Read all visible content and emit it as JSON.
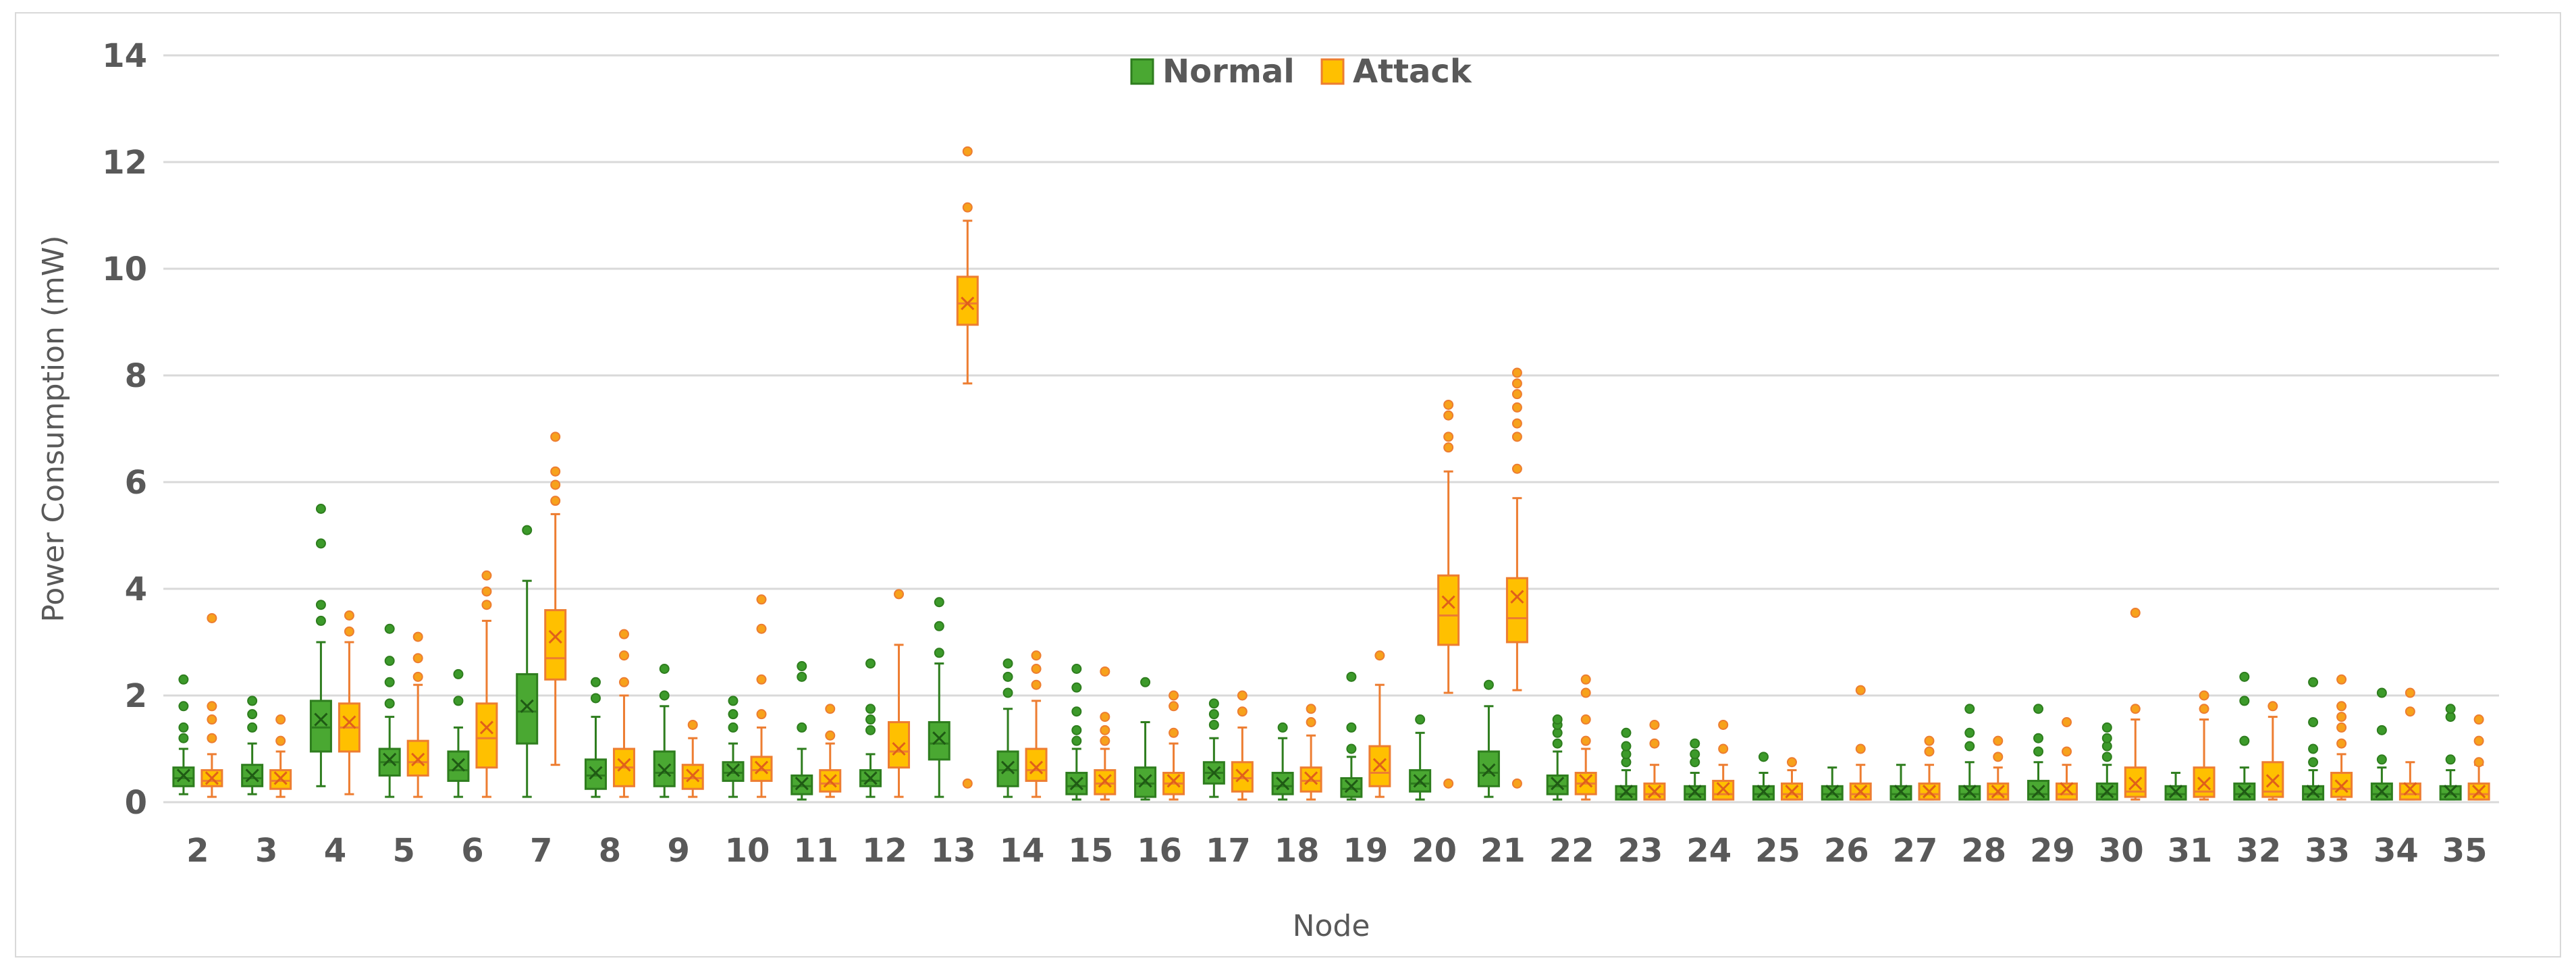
{
  "chart_data": {
    "type": "box",
    "title": "",
    "xlabel": "Node",
    "ylabel": "Power Consumption (mW)",
    "ylim": [
      0,
      14
    ],
    "yticks": [
      0,
      2,
      4,
      6,
      8,
      10,
      12,
      14
    ],
    "grid": true,
    "legend_position": "top-center",
    "categories": [
      "2",
      "3",
      "4",
      "5",
      "6",
      "7",
      "8",
      "9",
      "10",
      "11",
      "12",
      "13",
      "14",
      "15",
      "16",
      "17",
      "18",
      "19",
      "20",
      "21",
      "22",
      "23",
      "24",
      "25",
      "26",
      "27",
      "28",
      "29",
      "30",
      "31",
      "32",
      "33",
      "34",
      "35"
    ],
    "series": [
      {
        "name": "Normal",
        "color": "#4aa832",
        "edge": "#2e7d1e",
        "boxes": [
          {
            "min": 0.15,
            "q1": 0.3,
            "median": 0.45,
            "q3": 0.65,
            "max": 1.0,
            "mean": 0.5,
            "outliers": [
              1.2,
              1.4,
              1.8,
              2.3
            ]
          },
          {
            "min": 0.15,
            "q1": 0.3,
            "median": 0.45,
            "q3": 0.7,
            "max": 1.1,
            "mean": 0.5,
            "outliers": [
              1.4,
              1.65,
              1.9
            ]
          },
          {
            "min": 0.3,
            "q1": 0.95,
            "median": 1.4,
            "q3": 1.9,
            "max": 3.0,
            "mean": 1.55,
            "outliers": [
              3.4,
              3.7,
              4.85,
              5.5
            ]
          },
          {
            "min": 0.1,
            "q1": 0.5,
            "median": 0.75,
            "q3": 1.0,
            "max": 1.6,
            "mean": 0.8,
            "outliers": [
              1.85,
              2.25,
              2.65,
              3.25
            ]
          },
          {
            "min": 0.1,
            "q1": 0.4,
            "median": 0.6,
            "q3": 0.95,
            "max": 1.4,
            "mean": 0.7,
            "outliers": [
              1.9,
              2.4
            ]
          },
          {
            "min": 0.1,
            "q1": 1.1,
            "median": 1.7,
            "q3": 2.4,
            "max": 4.15,
            "mean": 1.8,
            "outliers": [
              5.1
            ]
          },
          {
            "min": 0.1,
            "q1": 0.25,
            "median": 0.5,
            "q3": 0.8,
            "max": 1.6,
            "mean": 0.55,
            "outliers": [
              1.95,
              2.25
            ]
          },
          {
            "min": 0.1,
            "q1": 0.3,
            "median": 0.55,
            "q3": 0.95,
            "max": 1.8,
            "mean": 0.6,
            "outliers": [
              2.0,
              2.5
            ]
          },
          {
            "min": 0.1,
            "q1": 0.4,
            "median": 0.55,
            "q3": 0.75,
            "max": 1.1,
            "mean": 0.6,
            "outliers": [
              1.4,
              1.65,
              1.9
            ]
          },
          {
            "min": 0.05,
            "q1": 0.15,
            "median": 0.3,
            "q3": 0.5,
            "max": 1.0,
            "mean": 0.35,
            "outliers": [
              1.4,
              2.35,
              2.55
            ]
          },
          {
            "min": 0.1,
            "q1": 0.3,
            "median": 0.4,
            "q3": 0.6,
            "max": 0.9,
            "mean": 0.45,
            "outliers": [
              1.35,
              1.55,
              1.75,
              2.6
            ]
          },
          {
            "min": 0.1,
            "q1": 0.8,
            "median": 1.1,
            "q3": 1.5,
            "max": 2.6,
            "mean": 1.2,
            "outliers": [
              2.8,
              3.3,
              3.75
            ]
          },
          {
            "min": 0.1,
            "q1": 0.3,
            "median": 0.6,
            "q3": 0.95,
            "max": 1.75,
            "mean": 0.65,
            "outliers": [
              2.05,
              2.35,
              2.6
            ]
          },
          {
            "min": 0.05,
            "q1": 0.15,
            "median": 0.3,
            "q3": 0.55,
            "max": 1.0,
            "mean": 0.35,
            "outliers": [
              1.15,
              1.35,
              1.7,
              2.15,
              2.5
            ]
          },
          {
            "min": 0.05,
            "q1": 0.1,
            "median": 0.35,
            "q3": 0.65,
            "max": 1.5,
            "mean": 0.4,
            "outliers": [
              2.25
            ]
          },
          {
            "min": 0.1,
            "q1": 0.35,
            "median": 0.55,
            "q3": 0.75,
            "max": 1.2,
            "mean": 0.55,
            "outliers": [
              1.45,
              1.65,
              1.85
            ]
          },
          {
            "min": 0.05,
            "q1": 0.15,
            "median": 0.3,
            "q3": 0.55,
            "max": 1.2,
            "mean": 0.35,
            "outliers": [
              1.4
            ]
          },
          {
            "min": 0.05,
            "q1": 0.1,
            "median": 0.25,
            "q3": 0.45,
            "max": 0.85,
            "mean": 0.3,
            "outliers": [
              1.0,
              1.4,
              2.35
            ]
          },
          {
            "min": 0.05,
            "q1": 0.2,
            "median": 0.35,
            "q3": 0.6,
            "max": 1.3,
            "mean": 0.4,
            "outliers": [
              1.55
            ]
          },
          {
            "min": 0.1,
            "q1": 0.3,
            "median": 0.55,
            "q3": 0.95,
            "max": 1.8,
            "mean": 0.6,
            "outliers": [
              2.2
            ]
          },
          {
            "min": 0.05,
            "q1": 0.15,
            "median": 0.3,
            "q3": 0.5,
            "max": 0.95,
            "mean": 0.35,
            "outliers": [
              1.1,
              1.3,
              1.45,
              1.55
            ]
          },
          {
            "min": 0.05,
            "q1": 0.05,
            "median": 0.15,
            "q3": 0.3,
            "max": 0.6,
            "mean": 0.2,
            "outliers": [
              0.75,
              0.9,
              1.05,
              1.3
            ]
          },
          {
            "min": 0.05,
            "q1": 0.05,
            "median": 0.15,
            "q3": 0.3,
            "max": 0.55,
            "mean": 0.2,
            "outliers": [
              0.75,
              0.9,
              1.1
            ]
          },
          {
            "min": 0.05,
            "q1": 0.05,
            "median": 0.15,
            "q3": 0.3,
            "max": 0.55,
            "mean": 0.2,
            "outliers": [
              0.85
            ]
          },
          {
            "min": 0.05,
            "q1": 0.05,
            "median": 0.15,
            "q3": 0.3,
            "max": 0.65,
            "mean": 0.2,
            "outliers": []
          },
          {
            "min": 0.05,
            "q1": 0.05,
            "median": 0.15,
            "q3": 0.3,
            "max": 0.7,
            "mean": 0.2,
            "outliers": []
          },
          {
            "min": 0.05,
            "q1": 0.05,
            "median": 0.15,
            "q3": 0.3,
            "max": 0.75,
            "mean": 0.2,
            "outliers": [
              1.05,
              1.3,
              1.75
            ]
          },
          {
            "min": 0.05,
            "q1": 0.05,
            "median": 0.15,
            "q3": 0.4,
            "max": 0.75,
            "mean": 0.2,
            "outliers": [
              0.95,
              1.2,
              1.75
            ]
          },
          {
            "min": 0.05,
            "q1": 0.05,
            "median": 0.15,
            "q3": 0.35,
            "max": 0.7,
            "mean": 0.2,
            "outliers": [
              0.85,
              1.05,
              1.2,
              1.4
            ]
          },
          {
            "min": 0.05,
            "q1": 0.05,
            "median": 0.15,
            "q3": 0.3,
            "max": 0.55,
            "mean": 0.2,
            "outliers": []
          },
          {
            "min": 0.05,
            "q1": 0.05,
            "median": 0.15,
            "q3": 0.35,
            "max": 0.65,
            "mean": 0.2,
            "outliers": [
              1.15,
              1.9,
              2.35
            ]
          },
          {
            "min": 0.05,
            "q1": 0.05,
            "median": 0.15,
            "q3": 0.3,
            "max": 0.6,
            "mean": 0.2,
            "outliers": [
              0.75,
              1.0,
              1.5,
              2.25
            ]
          },
          {
            "min": 0.05,
            "q1": 0.05,
            "median": 0.15,
            "q3": 0.35,
            "max": 0.65,
            "mean": 0.2,
            "outliers": [
              0.8,
              1.35,
              2.05
            ]
          },
          {
            "min": 0.05,
            "q1": 0.05,
            "median": 0.15,
            "q3": 0.3,
            "max": 0.6,
            "mean": 0.2,
            "outliers": [
              0.8,
              1.6,
              1.75
            ]
          }
        ]
      },
      {
        "name": "Attack",
        "color": "#ffc000",
        "edge": "#ed7d31",
        "boxes": [
          {
            "min": 0.1,
            "q1": 0.3,
            "median": 0.4,
            "q3": 0.6,
            "max": 0.9,
            "mean": 0.45,
            "outliers": [
              1.2,
              1.55,
              1.8,
              3.45
            ]
          },
          {
            "min": 0.1,
            "q1": 0.25,
            "median": 0.4,
            "q3": 0.6,
            "max": 0.95,
            "mean": 0.45,
            "outliers": [
              1.15,
              1.55
            ]
          },
          {
            "min": 0.15,
            "q1": 0.95,
            "median": 1.4,
            "q3": 1.85,
            "max": 3.0,
            "mean": 1.5,
            "outliers": [
              3.2,
              3.5
            ]
          },
          {
            "min": 0.1,
            "q1": 0.5,
            "median": 0.75,
            "q3": 1.15,
            "max": 2.2,
            "mean": 0.8,
            "outliers": [
              2.35,
              2.7,
              3.1
            ]
          },
          {
            "min": 0.1,
            "q1": 0.65,
            "median": 1.2,
            "q3": 1.85,
            "max": 3.4,
            "mean": 1.4,
            "outliers": [
              3.7,
              3.95,
              4.25
            ]
          },
          {
            "min": 0.7,
            "q1": 2.3,
            "median": 2.7,
            "q3": 3.6,
            "max": 5.4,
            "mean": 3.1,
            "outliers": [
              5.65,
              5.95,
              6.2,
              6.85
            ]
          },
          {
            "min": 0.1,
            "q1": 0.3,
            "median": 0.65,
            "q3": 1.0,
            "max": 2.0,
            "mean": 0.7,
            "outliers": [
              2.25,
              2.75,
              3.15
            ]
          },
          {
            "min": 0.1,
            "q1": 0.25,
            "median": 0.45,
            "q3": 0.7,
            "max": 1.2,
            "mean": 0.5,
            "outliers": [
              1.45
            ]
          },
          {
            "min": 0.1,
            "q1": 0.4,
            "median": 0.6,
            "q3": 0.85,
            "max": 1.4,
            "mean": 0.65,
            "outliers": [
              1.65,
              2.3,
              3.25,
              3.8
            ]
          },
          {
            "min": 0.1,
            "q1": 0.2,
            "median": 0.35,
            "q3": 0.6,
            "max": 1.1,
            "mean": 0.4,
            "outliers": [
              1.25,
              1.75
            ]
          },
          {
            "min": 0.1,
            "q1": 0.65,
            "median": 0.95,
            "q3": 1.5,
            "max": 2.95,
            "mean": 1.0,
            "outliers": [
              3.9
            ]
          },
          {
            "min": 7.85,
            "q1": 8.95,
            "median": 9.35,
            "q3": 9.85,
            "max": 10.9,
            "mean": 9.35,
            "outliers": [
              0.35,
              11.15,
              12.2
            ]
          },
          {
            "min": 0.1,
            "q1": 0.4,
            "median": 0.6,
            "q3": 1.0,
            "max": 1.9,
            "mean": 0.65,
            "outliers": [
              2.2,
              2.5,
              2.75
            ]
          },
          {
            "min": 0.05,
            "q1": 0.15,
            "median": 0.35,
            "q3": 0.6,
            "max": 1.0,
            "mean": 0.4,
            "outliers": [
              1.15,
              1.35,
              1.6,
              2.45
            ]
          },
          {
            "min": 0.05,
            "q1": 0.15,
            "median": 0.35,
            "q3": 0.55,
            "max": 1.1,
            "mean": 0.4,
            "outliers": [
              1.3,
              1.8,
              2.0
            ]
          },
          {
            "min": 0.05,
            "q1": 0.2,
            "median": 0.45,
            "q3": 0.75,
            "max": 1.4,
            "mean": 0.5,
            "outliers": [
              1.7,
              2.0
            ]
          },
          {
            "min": 0.05,
            "q1": 0.2,
            "median": 0.4,
            "q3": 0.65,
            "max": 1.25,
            "mean": 0.45,
            "outliers": [
              1.5,
              1.75
            ]
          },
          {
            "min": 0.1,
            "q1": 0.3,
            "median": 0.55,
            "q3": 1.05,
            "max": 2.2,
            "mean": 0.7,
            "outliers": [
              2.75
            ]
          },
          {
            "min": 2.05,
            "q1": 2.95,
            "median": 3.5,
            "q3": 4.25,
            "max": 6.2,
            "mean": 3.75,
            "outliers": [
              0.35,
              6.65,
              6.85,
              7.25,
              7.45
            ]
          },
          {
            "min": 2.1,
            "q1": 3.0,
            "median": 3.45,
            "q3": 4.2,
            "max": 5.7,
            "mean": 3.85,
            "outliers": [
              0.35,
              6.25,
              6.85,
              7.1,
              7.4,
              7.65,
              7.85,
              8.05
            ]
          },
          {
            "min": 0.05,
            "q1": 0.15,
            "median": 0.35,
            "q3": 0.55,
            "max": 1.0,
            "mean": 0.4,
            "outliers": [
              1.15,
              1.55,
              2.05,
              2.3
            ]
          },
          {
            "min": 0.05,
            "q1": 0.05,
            "median": 0.15,
            "q3": 0.35,
            "max": 0.7,
            "mean": 0.2,
            "outliers": [
              1.1,
              1.45
            ]
          },
          {
            "min": 0.05,
            "q1": 0.05,
            "median": 0.15,
            "q3": 0.4,
            "max": 0.7,
            "mean": 0.25,
            "outliers": [
              1.0,
              1.45
            ]
          },
          {
            "min": 0.05,
            "q1": 0.05,
            "median": 0.15,
            "q3": 0.35,
            "max": 0.6,
            "mean": 0.2,
            "outliers": [
              0.75
            ]
          },
          {
            "min": 0.05,
            "q1": 0.05,
            "median": 0.15,
            "q3": 0.35,
            "max": 0.7,
            "mean": 0.2,
            "outliers": [
              1.0,
              2.1
            ]
          },
          {
            "min": 0.05,
            "q1": 0.05,
            "median": 0.15,
            "q3": 0.35,
            "max": 0.7,
            "mean": 0.2,
            "outliers": [
              0.95,
              1.15
            ]
          },
          {
            "min": 0.05,
            "q1": 0.05,
            "median": 0.15,
            "q3": 0.35,
            "max": 0.65,
            "mean": 0.2,
            "outliers": [
              0.85,
              1.15
            ]
          },
          {
            "min": 0.05,
            "q1": 0.05,
            "median": 0.15,
            "q3": 0.35,
            "max": 0.7,
            "mean": 0.25,
            "outliers": [
              0.95,
              1.5
            ]
          },
          {
            "min": 0.05,
            "q1": 0.1,
            "median": 0.2,
            "q3": 0.65,
            "max": 1.55,
            "mean": 0.35,
            "outliers": [
              1.75,
              3.55
            ]
          },
          {
            "min": 0.05,
            "q1": 0.1,
            "median": 0.2,
            "q3": 0.65,
            "max": 1.55,
            "mean": 0.35,
            "outliers": [
              1.75,
              2.0
            ]
          },
          {
            "min": 0.05,
            "q1": 0.1,
            "median": 0.2,
            "q3": 0.75,
            "max": 1.6,
            "mean": 0.4,
            "outliers": [
              1.8
            ]
          },
          {
            "min": 0.05,
            "q1": 0.1,
            "median": 0.25,
            "q3": 0.55,
            "max": 0.9,
            "mean": 0.3,
            "outliers": [
              1.1,
              1.4,
              1.6,
              1.8,
              2.3
            ]
          },
          {
            "min": 0.05,
            "q1": 0.05,
            "median": 0.15,
            "q3": 0.35,
            "max": 0.75,
            "mean": 0.25,
            "outliers": [
              1.7,
              2.05
            ]
          },
          {
            "min": 0.05,
            "q1": 0.05,
            "median": 0.15,
            "q3": 0.35,
            "max": 0.7,
            "mean": 0.2,
            "outliers": [
              0.75,
              1.15,
              1.55
            ]
          }
        ]
      }
    ]
  }
}
